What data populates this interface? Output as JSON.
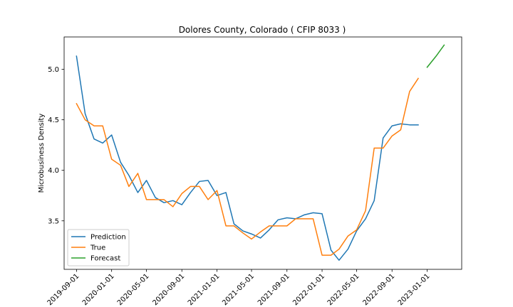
{
  "chart_data": {
    "type": "line",
    "title": "Dolores County, Colorado ( CFIP 8033 )",
    "xlabel": "",
    "ylabel": "Microbusiness Density",
    "x_tick_labels": [
      "2019-09-01",
      "2020-01-01",
      "2020-05-01",
      "2020-09-01",
      "2021-01-01",
      "2021-05-01",
      "2021-09-01",
      "2022-01-01",
      "2022-05-01",
      "2022-09-01",
      "2023-01-01"
    ],
    "y_ticks": [
      3.5,
      4.0,
      4.5,
      5.0
    ],
    "y_tick_labels": [
      "3.5",
      "4.0",
      "4.5",
      "5.0"
    ],
    "ylim": [
      3.02,
      5.32
    ],
    "xlim": [
      "2019-07-20",
      "2023-05-01"
    ],
    "legend_position": "lower left",
    "grid": false,
    "series": [
      {
        "name": "Prediction",
        "color": "#1f77b4",
        "points": [
          [
            "2019-09-01",
            5.13
          ],
          [
            "2019-10-01",
            4.56
          ],
          [
            "2019-11-01",
            4.31
          ],
          [
            "2019-12-01",
            4.27
          ],
          [
            "2020-01-01",
            4.35
          ],
          [
            "2020-02-01",
            4.08
          ],
          [
            "2020-03-01",
            3.95
          ],
          [
            "2020-04-01",
            3.78
          ],
          [
            "2020-05-01",
            3.9
          ],
          [
            "2020-06-01",
            3.73
          ],
          [
            "2020-07-01",
            3.68
          ],
          [
            "2020-08-01",
            3.7
          ],
          [
            "2020-09-01",
            3.66
          ],
          [
            "2020-10-01",
            3.78
          ],
          [
            "2020-11-01",
            3.89
          ],
          [
            "2020-12-01",
            3.9
          ],
          [
            "2021-01-01",
            3.75
          ],
          [
            "2021-02-01",
            3.78
          ],
          [
            "2021-03-01",
            3.47
          ],
          [
            "2021-04-01",
            3.4
          ],
          [
            "2021-05-01",
            3.37
          ],
          [
            "2021-06-01",
            3.33
          ],
          [
            "2021-07-01",
            3.41
          ],
          [
            "2021-08-01",
            3.51
          ],
          [
            "2021-09-01",
            3.53
          ],
          [
            "2021-10-01",
            3.52
          ],
          [
            "2021-11-01",
            3.56
          ],
          [
            "2021-12-01",
            3.58
          ],
          [
            "2022-01-01",
            3.57
          ],
          [
            "2022-02-01",
            3.21
          ],
          [
            "2022-03-01",
            3.11
          ],
          [
            "2022-04-01",
            3.22
          ],
          [
            "2022-05-01",
            3.4
          ],
          [
            "2022-06-01",
            3.52
          ],
          [
            "2022-07-01",
            3.7
          ],
          [
            "2022-08-01",
            4.32
          ],
          [
            "2022-09-01",
            4.44
          ],
          [
            "2022-10-01",
            4.46
          ],
          [
            "2022-11-01",
            4.45
          ],
          [
            "2022-12-01",
            4.45
          ]
        ]
      },
      {
        "name": "True",
        "color": "#ff7f0e",
        "points": [
          [
            "2019-09-01",
            4.66
          ],
          [
            "2019-10-01",
            4.5
          ],
          [
            "2019-11-01",
            4.44
          ],
          [
            "2019-12-01",
            4.44
          ],
          [
            "2020-01-01",
            4.11
          ],
          [
            "2020-02-01",
            4.05
          ],
          [
            "2020-03-01",
            3.84
          ],
          [
            "2020-04-01",
            3.97
          ],
          [
            "2020-05-01",
            3.71
          ],
          [
            "2020-06-01",
            3.71
          ],
          [
            "2020-07-01",
            3.71
          ],
          [
            "2020-08-01",
            3.64
          ],
          [
            "2020-09-01",
            3.77
          ],
          [
            "2020-10-01",
            3.84
          ],
          [
            "2020-11-01",
            3.84
          ],
          [
            "2020-12-01",
            3.71
          ],
          [
            "2021-01-01",
            3.8
          ],
          [
            "2021-02-01",
            3.45
          ],
          [
            "2021-03-01",
            3.45
          ],
          [
            "2021-04-01",
            3.38
          ],
          [
            "2021-05-01",
            3.32
          ],
          [
            "2021-06-01",
            3.39
          ],
          [
            "2021-07-01",
            3.45
          ],
          [
            "2021-08-01",
            3.45
          ],
          [
            "2021-09-01",
            3.45
          ],
          [
            "2021-10-01",
            3.52
          ],
          [
            "2021-11-01",
            3.52
          ],
          [
            "2021-12-01",
            3.52
          ],
          [
            "2022-01-01",
            3.16
          ],
          [
            "2022-02-01",
            3.16
          ],
          [
            "2022-03-01",
            3.22
          ],
          [
            "2022-04-01",
            3.35
          ],
          [
            "2022-05-01",
            3.41
          ],
          [
            "2022-06-01",
            3.6
          ],
          [
            "2022-07-01",
            4.22
          ],
          [
            "2022-08-01",
            4.22
          ],
          [
            "2022-09-01",
            4.34
          ],
          [
            "2022-10-01",
            4.4
          ],
          [
            "2022-11-01",
            4.78
          ],
          [
            "2022-12-01",
            4.91
          ]
        ]
      },
      {
        "name": "Forecast",
        "color": "#2ca02c",
        "points": [
          [
            "2023-01-01",
            5.02
          ],
          [
            "2023-02-01",
            5.13
          ],
          [
            "2023-03-01",
            5.24
          ]
        ]
      }
    ]
  }
}
